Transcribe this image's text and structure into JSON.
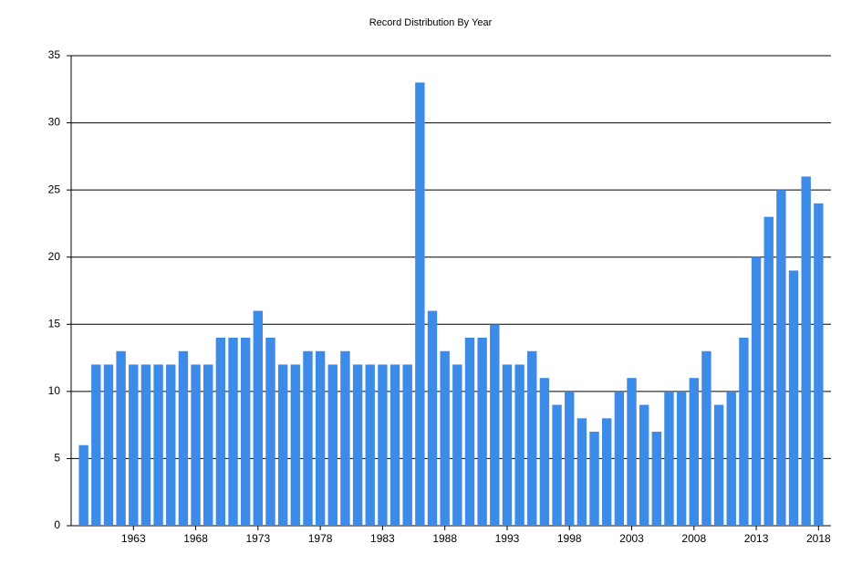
{
  "chart_data": {
    "type": "bar",
    "title": "Record Distribution By Year",
    "categories": [
      null,
      null,
      null,
      null,
      "1963",
      null,
      null,
      null,
      null,
      "1968",
      null,
      null,
      null,
      null,
      "1973",
      null,
      null,
      null,
      null,
      "1978",
      null,
      null,
      null,
      null,
      "1983",
      null,
      null,
      null,
      null,
      "1988",
      null,
      null,
      null,
      null,
      "1993",
      null,
      null,
      null,
      null,
      "1998",
      null,
      null,
      null,
      null,
      "2003",
      null,
      null,
      null,
      null,
      "2008",
      null,
      null,
      null,
      null,
      "2013",
      null,
      null,
      null,
      null,
      "2018"
    ],
    "values": [
      6,
      12,
      12,
      13,
      12,
      12,
      12,
      12,
      13,
      12,
      12,
      14,
      14,
      14,
      16,
      14,
      12,
      12,
      13,
      13,
      12,
      13,
      12,
      12,
      12,
      12,
      12,
      33,
      16,
      13,
      12,
      14,
      14,
      15,
      12,
      12,
      13,
      11,
      9,
      10,
      8,
      7,
      8,
      10,
      11,
      9,
      7,
      10,
      10,
      11,
      13,
      9,
      10,
      14,
      20,
      23,
      25,
      19,
      26,
      24
    ],
    "color": "#3d8be8",
    "ylim": [
      0,
      35
    ],
    "yticks": [
      0,
      5,
      10,
      15,
      20,
      25,
      30,
      35
    ],
    "grid": true
  }
}
